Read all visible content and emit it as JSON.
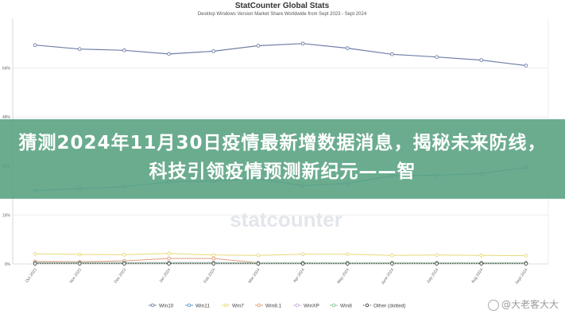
{
  "overlay": {
    "banner_text": "猜测2024年11月30日疫情最新增数据消息，揭秘未来防线，科技引领疫情预测新纪元——智",
    "credit": "@大老客大大"
  },
  "colors": {
    "Win10": "#6f7fa8",
    "Win11": "#5b9bd0",
    "Win7": "#e8d97a",
    "Win8.1": "#e0a07a",
    "WinXP": "#c9b0d8",
    "Win8": "#8fc49a",
    "Other": "#404040",
    "grid": "#e4e4e4",
    "axis": "#bbbbbb"
  },
  "chart_data": {
    "type": "line",
    "title": "StatCounter Global Stats",
    "subtitle": "Desktop Windows Version Market Share Worldwide from Sept 2023 - Sept 2024",
    "watermark": "statcounter",
    "y_ticks": [
      "0%",
      "16%",
      "32%",
      "48%",
      "64%"
    ],
    "ylim": [
      0,
      80
    ],
    "x": [
      "Oct 2023",
      "Nov 2023",
      "Dec 2023",
      "Jan 2024",
      "Feb 2024",
      "Mar 2024",
      "Apr 2024",
      "May 2024",
      "June 2024",
      "July 2024",
      "Aug 2024",
      "Sept 2024"
    ],
    "series": [
      {
        "name": "Win10",
        "values": [
          71.5,
          70.2,
          69.8,
          68.6,
          69.5,
          71.3,
          72.0,
          70.5,
          68.5,
          67.6,
          66.6,
          64.8
        ]
      },
      {
        "name": "Win11",
        "values": [
          24.0,
          24.6,
          25.2,
          26.8,
          27.1,
          27.8,
          25.6,
          26.3,
          28.8,
          29.0,
          29.5,
          31.5
        ]
      },
      {
        "name": "Win7",
        "values": [
          3.3,
          3.1,
          3.0,
          3.4,
          2.9,
          2.8,
          3.2,
          3.2,
          2.8,
          2.9,
          2.8,
          2.7
        ]
      },
      {
        "name": "Win8.1",
        "values": [
          0.8,
          0.7,
          1.0,
          1.8,
          1.8,
          0.4,
          0.4,
          0.4,
          0.4,
          0.4,
          0.4,
          0.4
        ]
      },
      {
        "name": "WinXP",
        "values": [
          0.5,
          0.5,
          0.5,
          0.5,
          0.5,
          0.4,
          0.4,
          0.4,
          0.4,
          0.4,
          0.4,
          0.4
        ]
      },
      {
        "name": "Win8",
        "values": [
          0.3,
          0.3,
          0.3,
          0.3,
          0.3,
          0.3,
          0.3,
          0.3,
          0.3,
          0.3,
          0.3,
          0.3
        ]
      },
      {
        "name": "Other",
        "values": [
          0.1,
          0.1,
          0.1,
          0.1,
          0.1,
          0.1,
          0.1,
          0.1,
          0.1,
          0.1,
          0.1,
          0.1
        ]
      }
    ],
    "legend_labels": [
      "Win10",
      "Win11",
      "Win7",
      "Win8.1",
      "WinXP",
      "Win8",
      "Other (dotted)"
    ],
    "legend_position": "bottom",
    "grid": true
  }
}
